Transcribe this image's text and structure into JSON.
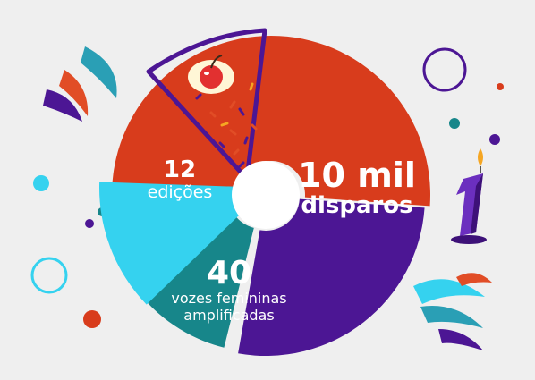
{
  "segments": [
    {
      "number": "10 mil",
      "label": "disparos",
      "color": "#d83c1c"
    },
    {
      "number": "40",
      "label_line1": "vozes femininas",
      "label_line2": "amplificadas",
      "color": "#4c1694"
    },
    {
      "number": "12",
      "label": "edições",
      "color": "#17868a"
    },
    {
      "color": "#35d2ef"
    }
  ],
  "cake_candle_number": "1",
  "colors": {
    "background": "#efefef",
    "orange": "#d83c1c",
    "purple": "#4c1694",
    "teal": "#17868a",
    "cyan": "#35d2ef"
  }
}
